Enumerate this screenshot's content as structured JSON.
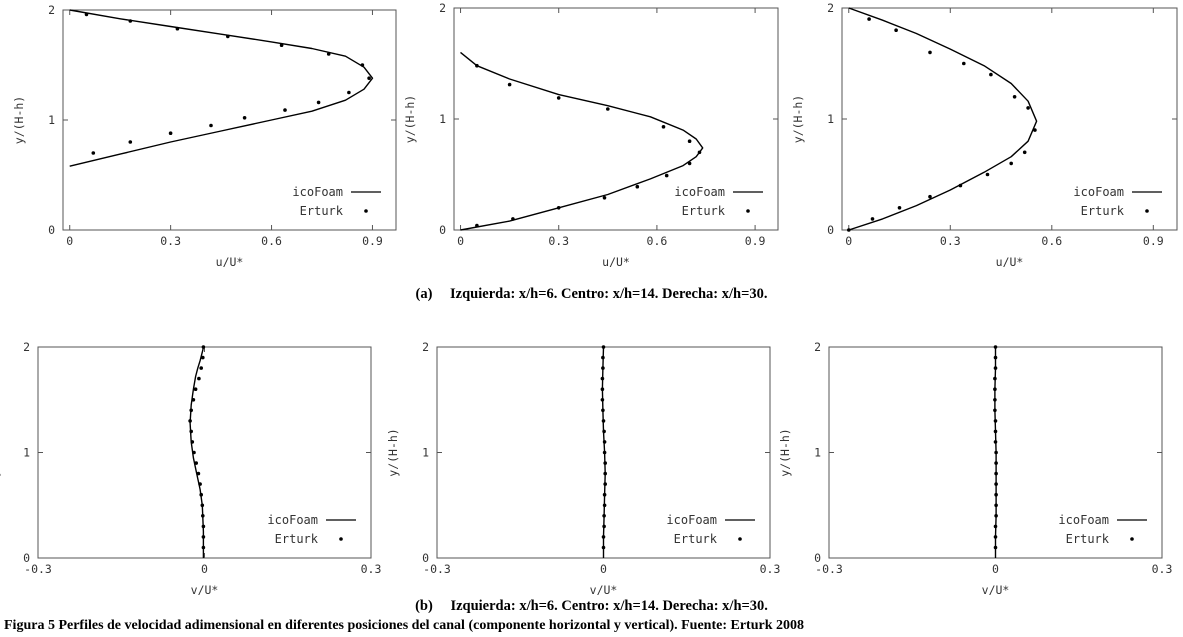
{
  "figure": {
    "caption_a": {
      "label": "(a)",
      "text": "Izquierda: x/h=6. Centro: x/h=14. Derecha: x/h=30."
    },
    "caption_b": {
      "label": "(b)",
      "text": "Izquierda: x/h=6. Centro: x/h=14. Derecha: x/h=30."
    },
    "bottom_caption": "Figura 5 Perfiles de velocidad adimensional en diferentes posiciones del canal (componente horizontal y vertical). Fuente: Erturk 2008"
  },
  "colors": {
    "line": "#000000",
    "frame": "#555555",
    "text": "#333333"
  },
  "chart_data": [
    {
      "id": "a-left",
      "type": "line",
      "xlabel": "u/U*",
      "ylabel": "y/(H-h)",
      "xlim": [
        -0.02,
        0.97
      ],
      "ylim": [
        0,
        2
      ],
      "xticks": [
        0,
        0.3,
        0.6,
        0.9
      ],
      "xtick_labels": [
        "0",
        "0.3",
        "0.6",
        "0.9"
      ],
      "yticks": [
        0,
        1,
        2
      ],
      "ytick_labels": [
        "0",
        "1",
        "2"
      ],
      "legend": "bottom-right",
      "grid": false,
      "series": [
        {
          "name": "icoFoam",
          "style": "line",
          "x": [
            0,
            0.15,
            0.3,
            0.45,
            0.6,
            0.72,
            0.82,
            0.875,
            0.9,
            0.875,
            0.82,
            0.72,
            0.6,
            0.45,
            0.3,
            0.15,
            0
          ],
          "y": [
            0.58,
            0.69,
            0.8,
            0.9,
            1.0,
            1.08,
            1.18,
            1.28,
            1.38,
            1.48,
            1.58,
            1.65,
            1.71,
            1.78,
            1.85,
            1.92,
            2.0
          ]
        },
        {
          "name": "Erturk",
          "style": "markers",
          "x": [
            0.07,
            0.18,
            0.3,
            0.42,
            0.52,
            0.64,
            0.74,
            0.83,
            0.89,
            0.87,
            0.77,
            0.63,
            0.47,
            0.32,
            0.18,
            0.05
          ],
          "y": [
            0.7,
            0.8,
            0.88,
            0.95,
            1.02,
            1.09,
            1.16,
            1.25,
            1.38,
            1.5,
            1.6,
            1.68,
            1.76,
            1.83,
            1.9,
            1.96
          ]
        }
      ]
    },
    {
      "id": "a-center",
      "type": "line",
      "xlabel": "u/U*",
      "ylabel": "y/(H-h)",
      "xlim": [
        -0.02,
        0.97
      ],
      "ylim": [
        0,
        2
      ],
      "xticks": [
        0,
        0.3,
        0.6,
        0.9
      ],
      "xtick_labels": [
        "0",
        "0.3",
        "0.6",
        "0.9"
      ],
      "yticks": [
        0,
        1,
        2
      ],
      "ytick_labels": [
        "0",
        "1",
        "2"
      ],
      "legend": "bottom-right",
      "grid": false,
      "series": [
        {
          "name": "icoFoam",
          "style": "line",
          "x": [
            0,
            0.15,
            0.3,
            0.45,
            0.58,
            0.68,
            0.72,
            0.74,
            0.72,
            0.68,
            0.58,
            0.45,
            0.3,
            0.15,
            0.05,
            0
          ],
          "y": [
            0,
            0.08,
            0.2,
            0.32,
            0.46,
            0.58,
            0.66,
            0.74,
            0.82,
            0.9,
            1.02,
            1.12,
            1.22,
            1.36,
            1.48,
            1.6
          ]
        },
        {
          "name": "Erturk",
          "style": "markers",
          "x": [
            0.05,
            0.16,
            0.3,
            0.44,
            0.54,
            0.63,
            0.7,
            0.73,
            0.7,
            0.62,
            0.45,
            0.3,
            0.15,
            0.05
          ],
          "y": [
            0.04,
            0.1,
            0.2,
            0.29,
            0.39,
            0.49,
            0.6,
            0.7,
            0.8,
            0.93,
            1.09,
            1.19,
            1.31,
            1.48
          ]
        }
      ]
    },
    {
      "id": "a-right",
      "type": "line",
      "xlabel": "u/U*",
      "ylabel": "y/(H-h)",
      "xlim": [
        -0.02,
        0.97
      ],
      "ylim": [
        0,
        2
      ],
      "xticks": [
        0,
        0.3,
        0.6,
        0.9
      ],
      "xtick_labels": [
        "0",
        "0.3",
        "0.6",
        "0.9"
      ],
      "yticks": [
        0,
        1,
        2
      ],
      "ytick_labels": [
        "0",
        "1",
        "2"
      ],
      "legend": "bottom-right",
      "grid": false,
      "series": [
        {
          "name": "icoFoam",
          "style": "line",
          "x": [
            0,
            0.1,
            0.2,
            0.3,
            0.4,
            0.48,
            0.53,
            0.555,
            0.53,
            0.48,
            0.4,
            0.3,
            0.2,
            0.1,
            0
          ],
          "y": [
            0,
            0.1,
            0.22,
            0.36,
            0.52,
            0.66,
            0.8,
            0.98,
            1.16,
            1.32,
            1.48,
            1.63,
            1.77,
            1.89,
            2.0
          ]
        },
        {
          "name": "Erturk",
          "style": "markers",
          "x": [
            0,
            0.07,
            0.15,
            0.24,
            0.33,
            0.41,
            0.48,
            0.52,
            0.55,
            0.53,
            0.49,
            0.42,
            0.34,
            0.24,
            0.14,
            0.06
          ],
          "y": [
            0,
            0.1,
            0.2,
            0.3,
            0.4,
            0.5,
            0.6,
            0.7,
            0.9,
            1.1,
            1.2,
            1.4,
            1.5,
            1.6,
            1.8,
            1.9
          ]
        }
      ]
    },
    {
      "id": "b-left",
      "type": "line",
      "xlabel": "v/U*",
      "ylabel": "y/(H-h)",
      "xlim": [
        -0.3,
        0.3
      ],
      "ylim": [
        0,
        2
      ],
      "xticks": [
        -0.3,
        0,
        0.3
      ],
      "xtick_labels": [
        "-0.3",
        "0",
        "0.3"
      ],
      "yticks": [
        0,
        1,
        2
      ],
      "ytick_labels": [
        "0",
        "1",
        "2"
      ],
      "legend": "bottom-right",
      "grid": false,
      "series": [
        {
          "name": "icoFoam",
          "style": "line",
          "x": [
            -0.002,
            -0.002,
            -0.004,
            -0.008,
            -0.014,
            -0.02,
            -0.024,
            -0.026,
            -0.024,
            -0.02,
            -0.016,
            -0.012,
            -0.008,
            -0.005,
            -0.003,
            -0.002
          ],
          "y": [
            0,
            0.25,
            0.5,
            0.65,
            0.8,
            0.95,
            1.1,
            1.28,
            1.45,
            1.6,
            1.72,
            1.8,
            1.87,
            1.93,
            1.97,
            2.0
          ]
        },
        {
          "name": "Erturk",
          "style": "markers",
          "x": [
            -0.002,
            -0.002,
            -0.002,
            -0.003,
            -0.004,
            -0.006,
            -0.008,
            -0.011,
            -0.015,
            -0.019,
            -0.022,
            -0.024,
            -0.026,
            -0.024,
            -0.02,
            -0.016,
            -0.01,
            -0.006,
            -0.003,
            -0.002
          ],
          "y": [
            0.1,
            0.2,
            0.3,
            0.4,
            0.5,
            0.6,
            0.7,
            0.8,
            0.9,
            1.0,
            1.1,
            1.2,
            1.3,
            1.4,
            1.5,
            1.6,
            1.7,
            1.8,
            1.9,
            2.0
          ]
        }
      ]
    },
    {
      "id": "b-center",
      "type": "line",
      "xlabel": "v/U*",
      "ylabel": "y/(H-h)",
      "xlim": [
        -0.3,
        0.3
      ],
      "ylim": [
        0,
        2
      ],
      "xticks": [
        -0.3,
        0,
        0.3
      ],
      "xtick_labels": [
        "-0.3",
        "0",
        "0.3"
      ],
      "yticks": [
        0,
        1,
        2
      ],
      "ytick_labels": [
        "0",
        "1",
        "2"
      ],
      "legend": "bottom-right",
      "grid": false,
      "series": [
        {
          "name": "icoFoam",
          "style": "line",
          "x": [
            0,
            0.0,
            0.001,
            0.002,
            0.003,
            0.002,
            0.0,
            -0.001,
            -0.002,
            -0.001,
            0
          ],
          "y": [
            0,
            0.2,
            0.4,
            0.6,
            0.8,
            1.0,
            1.2,
            1.4,
            1.6,
            1.8,
            2.0
          ]
        },
        {
          "name": "Erturk",
          "style": "markers",
          "x": [
            0,
            0.0,
            0.001,
            0.001,
            0.002,
            0.002,
            0.003,
            0.003,
            0.003,
            0.002,
            0.002,
            0.001,
            0.0,
            -0.001,
            -0.002,
            -0.002,
            -0.002,
            -0.001,
            -0.001,
            0
          ],
          "y": [
            0.1,
            0.2,
            0.3,
            0.4,
            0.5,
            0.6,
            0.7,
            0.8,
            0.9,
            1.0,
            1.1,
            1.2,
            1.3,
            1.4,
            1.5,
            1.6,
            1.7,
            1.8,
            1.9,
            2.0
          ]
        }
      ]
    },
    {
      "id": "b-right",
      "type": "line",
      "xlabel": "v/U*",
      "ylabel": "y/(H-h)",
      "xlim": [
        -0.3,
        0.3
      ],
      "ylim": [
        0,
        2
      ],
      "xticks": [
        -0.3,
        0,
        0.3
      ],
      "xtick_labels": [
        "-0.3",
        "0",
        "0.3"
      ],
      "yticks": [
        0,
        1,
        2
      ],
      "ytick_labels": [
        "0",
        "1",
        "2"
      ],
      "legend": "bottom-right",
      "grid": false,
      "series": [
        {
          "name": "icoFoam",
          "style": "line",
          "x": [
            0,
            0.0,
            0.001,
            0.001,
            0.001,
            0.001,
            0.0,
            -0.001,
            -0.001,
            0,
            0
          ],
          "y": [
            0,
            0.2,
            0.4,
            0.6,
            0.8,
            1.0,
            1.2,
            1.4,
            1.6,
            1.8,
            2.0
          ]
        },
        {
          "name": "Erturk",
          "style": "markers",
          "x": [
            0,
            0.0,
            0.0,
            0.001,
            0.001,
            0.001,
            0.001,
            0.001,
            0.001,
            0.001,
            0.0,
            0.0,
            0.0,
            -0.001,
            -0.001,
            -0.001,
            -0.001,
            0.0,
            0.0,
            0
          ],
          "y": [
            0.1,
            0.2,
            0.3,
            0.4,
            0.5,
            0.6,
            0.7,
            0.8,
            0.9,
            1.0,
            1.1,
            1.2,
            1.3,
            1.4,
            1.5,
            1.6,
            1.7,
            1.8,
            1.9,
            2.0
          ]
        }
      ]
    }
  ]
}
